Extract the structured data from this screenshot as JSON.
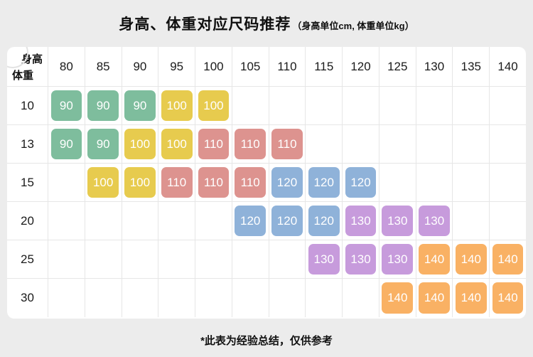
{
  "title": {
    "main": "身高、体重对应尺码推荐",
    "sub": "（身高单位cm, 体重单位kg）"
  },
  "corner": {
    "top_label": "身高",
    "bottom_label": "体重"
  },
  "footer": "*此表为经验总结，仅供参考",
  "colors": {
    "green": "#7ebd9d",
    "yellow": "#e7cb4e",
    "pink": "#dd938f",
    "blue": "#8fb2d9",
    "purple": "#c79bdc",
    "orange": "#f9b164"
  },
  "chart_data": {
    "type": "table",
    "title": "身高、体重对应尺码推荐",
    "x_axis_label": "身高 (cm)",
    "y_axis_label": "体重 (kg)",
    "columns": [
      "80",
      "85",
      "90",
      "95",
      "100",
      "105",
      "110",
      "115",
      "120",
      "125",
      "130",
      "135",
      "140"
    ],
    "rows": [
      {
        "label": "10",
        "cells": [
          {
            "v": "90",
            "c": "green"
          },
          {
            "v": "90",
            "c": "green"
          },
          {
            "v": "90",
            "c": "green"
          },
          {
            "v": "100",
            "c": "yellow"
          },
          {
            "v": "100",
            "c": "yellow"
          },
          null,
          null,
          null,
          null,
          null,
          null,
          null,
          null
        ]
      },
      {
        "label": "13",
        "cells": [
          {
            "v": "90",
            "c": "green"
          },
          {
            "v": "90",
            "c": "green"
          },
          {
            "v": "100",
            "c": "yellow"
          },
          {
            "v": "100",
            "c": "yellow"
          },
          {
            "v": "110",
            "c": "pink"
          },
          {
            "v": "110",
            "c": "pink"
          },
          {
            "v": "110",
            "c": "pink"
          },
          null,
          null,
          null,
          null,
          null,
          null
        ]
      },
      {
        "label": "15",
        "cells": [
          null,
          {
            "v": "100",
            "c": "yellow"
          },
          {
            "v": "100",
            "c": "yellow"
          },
          {
            "v": "110",
            "c": "pink"
          },
          {
            "v": "110",
            "c": "pink"
          },
          {
            "v": "110",
            "c": "pink"
          },
          {
            "v": "120",
            "c": "blue"
          },
          {
            "v": "120",
            "c": "blue"
          },
          {
            "v": "120",
            "c": "blue"
          },
          null,
          null,
          null,
          null
        ]
      },
      {
        "label": "20",
        "cells": [
          null,
          null,
          null,
          null,
          null,
          {
            "v": "120",
            "c": "blue"
          },
          {
            "v": "120",
            "c": "blue"
          },
          {
            "v": "120",
            "c": "blue"
          },
          {
            "v": "130",
            "c": "purple"
          },
          {
            "v": "130",
            "c": "purple"
          },
          {
            "v": "130",
            "c": "purple"
          },
          null,
          null
        ]
      },
      {
        "label": "25",
        "cells": [
          null,
          null,
          null,
          null,
          null,
          null,
          null,
          {
            "v": "130",
            "c": "purple"
          },
          {
            "v": "130",
            "c": "purple"
          },
          {
            "v": "130",
            "c": "purple"
          },
          {
            "v": "140",
            "c": "orange"
          },
          {
            "v": "140",
            "c": "orange"
          },
          {
            "v": "140",
            "c": "orange"
          }
        ]
      },
      {
        "label": "30",
        "cells": [
          null,
          null,
          null,
          null,
          null,
          null,
          null,
          null,
          null,
          {
            "v": "140",
            "c": "orange"
          },
          {
            "v": "140",
            "c": "orange"
          },
          {
            "v": "140",
            "c": "orange"
          },
          {
            "v": "140",
            "c": "orange"
          }
        ]
      }
    ]
  }
}
